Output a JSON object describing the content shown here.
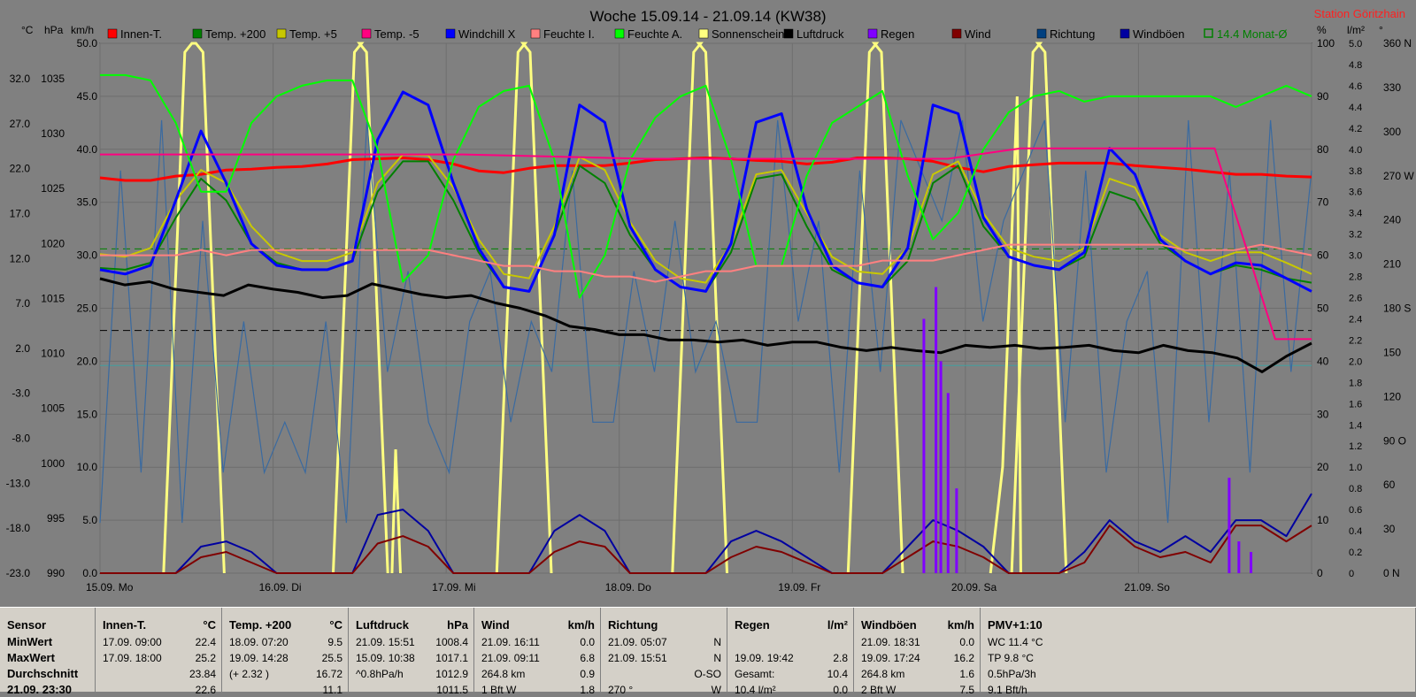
{
  "station": "Station Göritzhain",
  "chart_data": {
    "type": "line",
    "title": "Woche 15.09.14 - 21.09.14 (KW38)",
    "axes_left": {
      "degC": {
        "label": "°C",
        "ticks": [
          "32.0",
          "27.0",
          "22.0",
          "17.0",
          "12.0",
          "7.0",
          "2.0",
          "-3.0",
          "-8.0",
          "-13.0",
          "-18.0",
          "-23.0"
        ]
      },
      "hPa": {
        "label": "hPa",
        "ticks": [
          "1035",
          "1030",
          "1025",
          "1020",
          "1015",
          "1010",
          "1005",
          "1000",
          "995",
          "990"
        ]
      },
      "kmh": {
        "label": "km/h",
        "ticks": [
          "50.0",
          "45.0",
          "40.0",
          "35.0",
          "30.0",
          "25.0",
          "20.0",
          "15.0",
          "10.0",
          "5.0",
          "0.0"
        ]
      }
    },
    "axes_right": {
      "pct": {
        "label": "%",
        "ticks": [
          "100",
          "90",
          "80",
          "70",
          "60",
          "50",
          "40",
          "30",
          "20",
          "10",
          "0"
        ]
      },
      "lm2": {
        "label": "l/m²",
        "ticks": [
          "5.0",
          "4.8",
          "4.6",
          "4.4",
          "4.2",
          "4.0",
          "3.8",
          "3.6",
          "3.4",
          "3.2",
          "3.0",
          "2.8",
          "2.6",
          "2.4",
          "2.2",
          "2.0",
          "1.8",
          "1.6",
          "1.4",
          "1.2",
          "1.0",
          "0.8",
          "0.6",
          "0.4",
          "0.2",
          "0"
        ]
      },
      "dir": {
        "label": "°",
        "ticks": [
          "360 N",
          "330",
          "300",
          "270 W",
          "240",
          "210",
          "180 S",
          "150",
          "120",
          "90 O",
          "60",
          "30",
          "0 N"
        ]
      }
    },
    "x_labels": [
      "15.09. Mo",
      "16.09. Di",
      "17.09. Mi",
      "18.09. Do",
      "19.09. Fr",
      "20.09. Sa",
      "21.09. So"
    ],
    "legend": [
      {
        "name": "Innen-T.",
        "color": "#ff0000"
      },
      {
        "name": "Temp. +200",
        "color": "#008000"
      },
      {
        "name": "Temp. +5",
        "color": "#c8c800"
      },
      {
        "name": "Temp. -5",
        "color": "#ff0080"
      },
      {
        "name": "Windchill X",
        "color": "#0000ff"
      },
      {
        "name": "Feuchte I.",
        "color": "#ff8080"
      },
      {
        "name": "Feuchte A.",
        "color": "#00ff00"
      },
      {
        "name": "Sonnenschein",
        "color": "#ffff80"
      },
      {
        "name": "Luftdruck",
        "color": "#000000"
      },
      {
        "name": "Regen",
        "color": "#8000ff"
      },
      {
        "name": "Wind",
        "color": "#800000"
      },
      {
        "name": "Richtung",
        "color": "#004080"
      },
      {
        "name": "Windböen",
        "color": "#0000a0"
      },
      {
        "name": "14.4 Monat-Ø",
        "color": "#008000"
      }
    ],
    "series": [
      {
        "name": "Innen-T.",
        "axis": "degC",
        "values": [
          22.6,
          22.3,
          22.3,
          22.8,
          23.0,
          23.5,
          23.6,
          23.8,
          23.9,
          24.2,
          24.7,
          24.8,
          24.9,
          24.7,
          24.2,
          23.4,
          23.2,
          23.7,
          24.0,
          24.0,
          24.0,
          24.3,
          24.7,
          24.8,
          24.9,
          24.8,
          24.6,
          24.5,
          24.2,
          24.4,
          24.9,
          24.9,
          24.8,
          24.5,
          23.8,
          23.3,
          23.9,
          24.1,
          24.3,
          24.3,
          24.3,
          24.0,
          23.8,
          23.6,
          23.3,
          23.0,
          23.0,
          22.8,
          22.7
        ]
      },
      {
        "name": "Temp. +200",
        "axis": "degC",
        "values": [
          12.2,
          12.0,
          12.8,
          18.0,
          22.5,
          20.0,
          15.0,
          12.8,
          12.0,
          12.0,
          13.0,
          21.0,
          24.5,
          24.5,
          20.0,
          14.0,
          10.0,
          9.5,
          16.0,
          24.0,
          22.0,
          16.0,
          12.0,
          10.0,
          9.5,
          14.0,
          22.5,
          23.0,
          17.0,
          12.0,
          10.5,
          10.0,
          13.0,
          22.0,
          24.0,
          17.0,
          13.5,
          12.5,
          12.0,
          13.5,
          21.0,
          20.0,
          15.0,
          13.0,
          11.5,
          12.5,
          12.0,
          11.0,
          10.5
        ]
      },
      {
        "name": "Temp. +5",
        "axis": "degC",
        "values": [
          13.8,
          13.5,
          14.5,
          20.0,
          23.5,
          22.0,
          17.0,
          14.0,
          13.0,
          13.0,
          14.0,
          22.0,
          25.3,
          25.2,
          21.5,
          15.5,
          11.5,
          11.0,
          17.0,
          25.0,
          23.5,
          17.5,
          13.0,
          11.0,
          10.5,
          15.0,
          23.0,
          23.5,
          18.5,
          13.5,
          11.8,
          11.5,
          14.5,
          23.0,
          24.5,
          18.5,
          14.5,
          13.5,
          13.0,
          14.5,
          22.5,
          21.5,
          16.0,
          14.0,
          13.0,
          14.0,
          14.0,
          12.8,
          11.5
        ]
      },
      {
        "name": "Windchill X",
        "axis": "degC",
        "values": [
          12.0,
          11.5,
          12.5,
          20.0,
          28.0,
          22.0,
          15.0,
          12.5,
          12.0,
          12.0,
          13.0,
          27.0,
          32.5,
          31.0,
          22.0,
          14.5,
          10.0,
          9.5,
          16.0,
          31.0,
          29.0,
          17.0,
          12.0,
          10.0,
          9.5,
          15.0,
          29.0,
          30.0,
          19.0,
          12.5,
          10.5,
          10.0,
          14.5,
          31.0,
          30.0,
          18.0,
          13.5,
          12.5,
          12.0,
          14.0,
          26.0,
          23.0,
          15.5,
          13.0,
          11.5,
          12.8,
          12.5,
          11.0,
          9.5
        ]
      },
      {
        "name": "Feuchte A.",
        "axis": "pct",
        "values": [
          94,
          94,
          93,
          85,
          72,
          72,
          85,
          90,
          92,
          93,
          93,
          80,
          55,
          60,
          78,
          88,
          91,
          92,
          78,
          52,
          60,
          78,
          86,
          90,
          92,
          78,
          58,
          58,
          75,
          85,
          88,
          91,
          75,
          63,
          68,
          80,
          87,
          90,
          91,
          89,
          90,
          90,
          90,
          90,
          90,
          88,
          90,
          92,
          90
        ]
      },
      {
        "name": "Feuchte I.",
        "axis": "pct",
        "values": [
          60,
          60,
          60,
          60,
          61,
          60,
          61,
          61,
          61,
          61,
          61,
          61,
          61,
          61,
          60,
          59,
          58,
          58,
          57,
          57,
          56,
          56,
          55,
          56,
          57,
          57,
          58,
          58,
          58,
          58,
          58,
          59,
          59,
          59,
          60,
          61,
          62,
          62,
          62,
          62,
          62,
          62,
          62,
          61,
          61,
          61,
          62,
          61,
          60
        ]
      },
      {
        "name": "Luftdruck",
        "axis": "hPa",
        "values": [
          1017.8,
          1017.2,
          1017.5,
          1016.8,
          1016.5,
          1016.2,
          1017.2,
          1016.8,
          1016.5,
          1016.0,
          1016.2,
          1017.3,
          1016.8,
          1016.3,
          1016.0,
          1016.2,
          1015.5,
          1015.0,
          1014.3,
          1013.3,
          1013.0,
          1012.5,
          1012.5,
          1012.0,
          1012.0,
          1011.8,
          1012.0,
          1011.5,
          1011.8,
          1011.8,
          1011.3,
          1011.0,
          1011.3,
          1011.0,
          1010.8,
          1011.5,
          1011.3,
          1011.5,
          1011.2,
          1011.3,
          1011.5,
          1011.0,
          1010.8,
          1011.5,
          1011.0,
          1010.8,
          1010.3,
          1009.0,
          1010.5,
          1011.7
        ]
      },
      {
        "name": "Temp. -5",
        "axis": "degC",
        "points": [
          [
            0,
            25.3
          ],
          [
            0.3,
            25.3
          ],
          [
            0.45,
            24.8
          ],
          [
            0.7,
            24.8
          ],
          [
            0.76,
            26.0
          ],
          [
            0.92,
            26.0
          ],
          [
            0.97,
            4.0
          ],
          [
            1,
            4.0
          ]
        ]
      },
      {
        "name": "Sonnenschein",
        "axis": "kmh",
        "sunny_periods": [
          [
            0.07,
            0.085
          ],
          [
            0.21,
            0.22
          ],
          [
            0.345,
            0.355
          ],
          [
            0.49,
            0.5
          ],
          [
            0.635,
            0.645
          ],
          [
            0.77,
            0.78
          ]
        ]
      }
    ],
    "hlines": [
      {
        "name": "14.4 Monat-Ø",
        "axis": "degC",
        "value": 14.4,
        "color": "#008000",
        "style": "dashed"
      },
      {
        "name": "mean pressure",
        "axis": "hPa",
        "value": 1012.9,
        "color": "#000000",
        "style": "dashed"
      },
      {
        "name": "cyan",
        "axis": "kmh",
        "value": 19.6,
        "color": "#40a0a0",
        "style": "solid"
      }
    ],
    "rain_lm2": [
      [
        0.68,
        2.4
      ],
      [
        0.69,
        2.7
      ],
      [
        0.694,
        2.0
      ],
      [
        0.7,
        1.7
      ],
      [
        0.707,
        0.8
      ],
      [
        0.932,
        0.9
      ],
      [
        0.94,
        0.3
      ],
      [
        0.95,
        0.2
      ]
    ],
    "wind_kmh": [
      0,
      0,
      0,
      0,
      1.5,
      2,
      1.0,
      0,
      0,
      0,
      0,
      2.8,
      3.5,
      2.5,
      0,
      0,
      0,
      0,
      2.0,
      3.0,
      2.5,
      0,
      0,
      0,
      0,
      1.5,
      2.5,
      2.0,
      1.0,
      0,
      0,
      0,
      1.5,
      3.0,
      2.5,
      1.5,
      0,
      0,
      0,
      1.0,
      4.5,
      2.5,
      1.5,
      2.0,
      1.0,
      4.5,
      4.5,
      3.0,
      4.5
    ],
    "gust_kmh": [
      0,
      0,
      0,
      0,
      2.5,
      3,
      2.0,
      0,
      0,
      0,
      0,
      5.5,
      6.0,
      4.0,
      0,
      0,
      0,
      0,
      4.0,
      5.5,
      4.0,
      0,
      0,
      0,
      0,
      3.0,
      4.0,
      3.0,
      1.5,
      0,
      0,
      0,
      2.5,
      5.0,
      4.0,
      2.5,
      0,
      0,
      0,
      2.0,
      5.0,
      3.0,
      2.0,
      3.5,
      2.0,
      5.0,
      5.0,
      3.5,
      7.5
    ]
  },
  "table": {
    "columns": [
      {
        "key": "sensor",
        "header": "Sensor",
        "unit": "",
        "rows": [
          {
            "a": "MinWert",
            "b": ""
          },
          {
            "a": "MaxWert",
            "b": ""
          },
          {
            "a": "Durchschnitt",
            "b": ""
          },
          {
            "a": "21.09. 23:30",
            "b": ""
          }
        ]
      },
      {
        "key": "innen",
        "header": "Innen-T.",
        "unit": "°C",
        "rows": [
          {
            "a": "17.09. 09:00",
            "b": "22.4"
          },
          {
            "a": "17.09. 18:00",
            "b": "25.2"
          },
          {
            "a": "",
            "b": "23.84"
          },
          {
            "a": "",
            "b": "22.6"
          }
        ]
      },
      {
        "key": "temp200",
        "header": "Temp. +200",
        "unit": "°C",
        "rows": [
          {
            "a": "18.09. 07:20",
            "b": "9.5"
          },
          {
            "a": "19.09. 14:28",
            "b": "25.5"
          },
          {
            "a": "(+ 2.32 )",
            "b": "16.72"
          },
          {
            "a": "",
            "b": "11.1"
          }
        ]
      },
      {
        "key": "druck",
        "header": "Luftdruck",
        "unit": "hPa",
        "rows": [
          {
            "a": "21.09. 15:51",
            "b": "1008.4"
          },
          {
            "a": "15.09. 10:38",
            "b": "1017.1"
          },
          {
            "a": "^0.8hPa/h",
            "b": "1012.9"
          },
          {
            "a": "",
            "b": "1011.5"
          }
        ]
      },
      {
        "key": "wind",
        "header": "Wind",
        "unit": "km/h",
        "rows": [
          {
            "a": "21.09. 16:11",
            "b": "0.0"
          },
          {
            "a": "21.09. 09:11",
            "b": "6.8"
          },
          {
            "a": "264.8 km",
            "b": "0.9"
          },
          {
            "a": "1 Bft W",
            "b": "1.8"
          }
        ]
      },
      {
        "key": "richtung",
        "header": "Richtung",
        "unit": "",
        "rows": [
          {
            "a": "21.09. 05:07",
            "b": "N"
          },
          {
            "a": "21.09. 15:51",
            "b": "N"
          },
          {
            "a": "",
            "b": "O-SO"
          },
          {
            "a": "270 °",
            "b": "W"
          }
        ]
      },
      {
        "key": "regen",
        "header": "Regen",
        "unit": "l/m²",
        "rows": [
          {
            "a": "",
            "b": ""
          },
          {
            "a": "19.09. 19:42",
            "b": "2.8"
          },
          {
            "a": "Gesamt:",
            "b": "10.4"
          },
          {
            "a": "10.4 l/m² ",
            "b": "0.0"
          }
        ]
      },
      {
        "key": "boeen",
        "header": "Windböen",
        "unit": "km/h",
        "rows": [
          {
            "a": "21.09. 18:31",
            "b": "0.0"
          },
          {
            "a": "19.09. 17:24",
            "b": "16.2"
          },
          {
            "a": "264.8 km",
            "b": "1.6"
          },
          {
            "a": "2 Bft W",
            "b": "7.5"
          }
        ]
      },
      {
        "key": "pmv",
        "header": "PMV+1:10",
        "unit": "",
        "rows": [
          {
            "a": "WC 11.4 °C",
            "b": ""
          },
          {
            "a": "TP 9.8 °C",
            "b": ""
          },
          {
            "a": "0.5hPa/3h",
            "b": ""
          },
          {
            "a": "9.1 Bft/h",
            "b": ""
          }
        ]
      }
    ]
  }
}
